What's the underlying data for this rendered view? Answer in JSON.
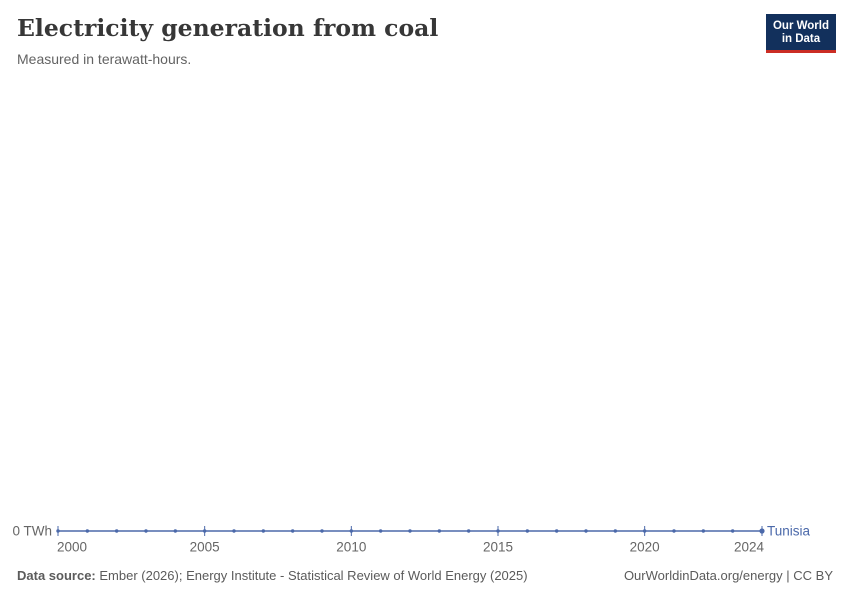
{
  "header": {
    "title": "Electricity generation from coal",
    "subtitle": "Measured in terawatt-hours."
  },
  "logo": {
    "line1": "Our World",
    "line2": "in Data",
    "bg_color": "#12305C",
    "accent_color": "#CB2D24"
  },
  "footer": {
    "source_label": "Data source:",
    "source_text": " Ember (2026); Energy Institute - Statistical Review of World Energy (2025)",
    "credit": "OurWorldinData.org/energy | CC BY"
  },
  "chart_data": {
    "type": "line",
    "title": "Electricity generation from coal",
    "subtitle": "Measured in terawatt-hours.",
    "x": [
      2000,
      2001,
      2002,
      2003,
      2004,
      2005,
      2006,
      2007,
      2008,
      2009,
      2010,
      2011,
      2012,
      2013,
      2014,
      2015,
      2016,
      2017,
      2018,
      2019,
      2020,
      2021,
      2022,
      2023,
      2024
    ],
    "series": [
      {
        "name": "Tunisia",
        "color": "#4B69AA",
        "values": [
          0,
          0,
          0,
          0,
          0,
          0,
          0,
          0,
          0,
          0,
          0,
          0,
          0,
          0,
          0,
          0,
          0,
          0,
          0,
          0,
          0,
          0,
          0,
          0,
          0
        ]
      }
    ],
    "x_range": [
      2000,
      2024
    ],
    "x_ticks": [
      2000,
      2005,
      2010,
      2015,
      2020,
      2024
    ],
    "y_axis_label": "0 TWh",
    "ylabel": "TWh",
    "xlabel": "",
    "ylim": [
      0,
      1
    ],
    "grid": false,
    "legend_position": "end-of-line",
    "axis_label_color": "#666666"
  }
}
